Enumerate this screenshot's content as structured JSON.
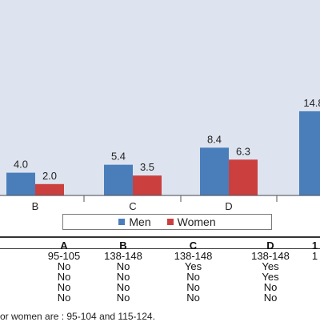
{
  "chart_data": {
    "type": "bar",
    "categories": [
      "B",
      "C",
      "D",
      ""
    ],
    "series": [
      {
        "name": "Men",
        "values": [
          4.0,
          5.4,
          8.4,
          14.8
        ],
        "labels": [
          "4.0",
          "5.4",
          "8.4",
          "14.8"
        ]
      },
      {
        "name": "Women",
        "values": [
          2.0,
          3.5,
          6.3,
          null
        ],
        "labels": [
          "2.0",
          "3.5",
          "6.3",
          ""
        ]
      }
    ],
    "colors": {
      "men": "#4a7ebb",
      "women": "#cc3f3f",
      "plot_bg": "#dde4ef"
    },
    "ylim": [
      0,
      17
    ]
  },
  "legend": {
    "men": "Men",
    "women": "Women"
  },
  "table": {
    "header": [
      "A",
      "B",
      "C",
      "D",
      "1"
    ],
    "rows": [
      [
        "95-105",
        "138-148",
        "138-148",
        "138-148",
        "1"
      ],
      [
        "No",
        "No",
        "Yes",
        "Yes",
        ""
      ],
      [
        "No",
        "No",
        "No",
        "Yes",
        ""
      ],
      [
        "No",
        "No",
        "No",
        "No",
        ""
      ],
      [
        "No",
        "No",
        "No",
        "No",
        ""
      ]
    ]
  },
  "footnote": "or women are : 95-104 and 115-124."
}
